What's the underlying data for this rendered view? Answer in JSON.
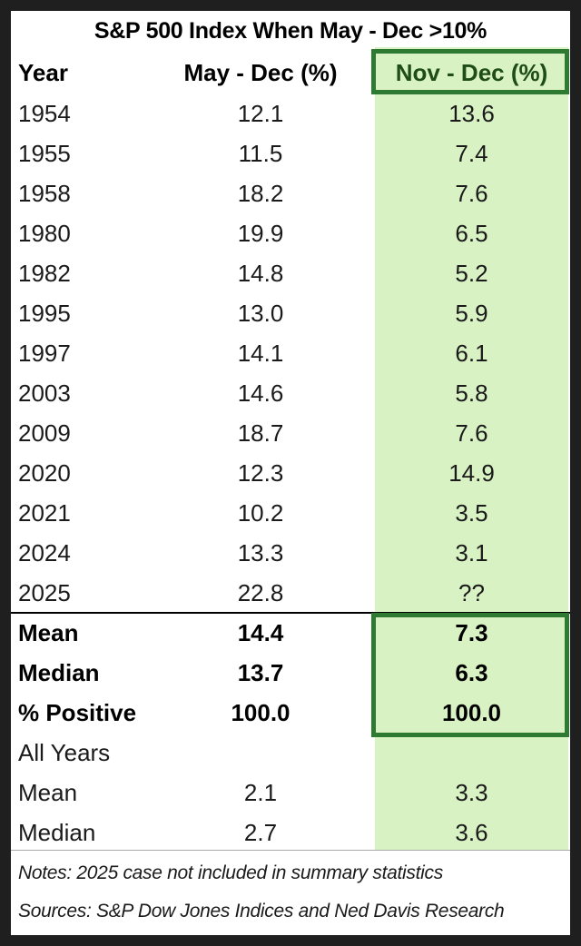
{
  "chart_data": {
    "type": "table",
    "title": "S&P 500 Index When May - Dec >10%",
    "columns": [
      "Year",
      "May - Dec (%)",
      "Nov - Dec (%)"
    ],
    "rows": [
      {
        "year": "1954",
        "may_dec": "12.1",
        "nov_dec": "13.6"
      },
      {
        "year": "1955",
        "may_dec": "11.5",
        "nov_dec": "7.4"
      },
      {
        "year": "1958",
        "may_dec": "18.2",
        "nov_dec": "7.6"
      },
      {
        "year": "1980",
        "may_dec": "19.9",
        "nov_dec": "6.5"
      },
      {
        "year": "1982",
        "may_dec": "14.8",
        "nov_dec": "5.2"
      },
      {
        "year": "1995",
        "may_dec": "13.0",
        "nov_dec": "5.9"
      },
      {
        "year": "1997",
        "may_dec": "14.1",
        "nov_dec": "6.1"
      },
      {
        "year": "2003",
        "may_dec": "14.6",
        "nov_dec": "5.8"
      },
      {
        "year": "2009",
        "may_dec": "18.7",
        "nov_dec": "7.6"
      },
      {
        "year": "2020",
        "may_dec": "12.3",
        "nov_dec": "14.9"
      },
      {
        "year": "2021",
        "may_dec": "10.2",
        "nov_dec": "3.5"
      },
      {
        "year": "2024",
        "may_dec": "13.3",
        "nov_dec": "3.1"
      },
      {
        "year": "2025",
        "may_dec": "22.8",
        "nov_dec": "??"
      }
    ],
    "summary": [
      {
        "label": "Mean",
        "may_dec": "14.4",
        "nov_dec": "7.3"
      },
      {
        "label": "Median",
        "may_dec": "13.7",
        "nov_dec": "6.3"
      },
      {
        "label": "% Positive",
        "may_dec": "100.0",
        "nov_dec": "100.0"
      }
    ],
    "all_years_label": "All Years",
    "all_years": [
      {
        "label": "Mean",
        "may_dec": "2.1",
        "nov_dec": "3.3"
      },
      {
        "label": "Median",
        "may_dec": "2.7",
        "nov_dec": "3.6"
      }
    ],
    "notes": "Notes: 2025 case not included in summary statistics",
    "sources": "Sources: S&P Dow Jones Indices and Ned Davis Research",
    "highlighted_column": "Nov - Dec (%)",
    "colors": {
      "highlight_fill": "#d8f2c4",
      "highlight_border": "#2f7a33",
      "header_highlight_text": "#1e4d16"
    }
  }
}
